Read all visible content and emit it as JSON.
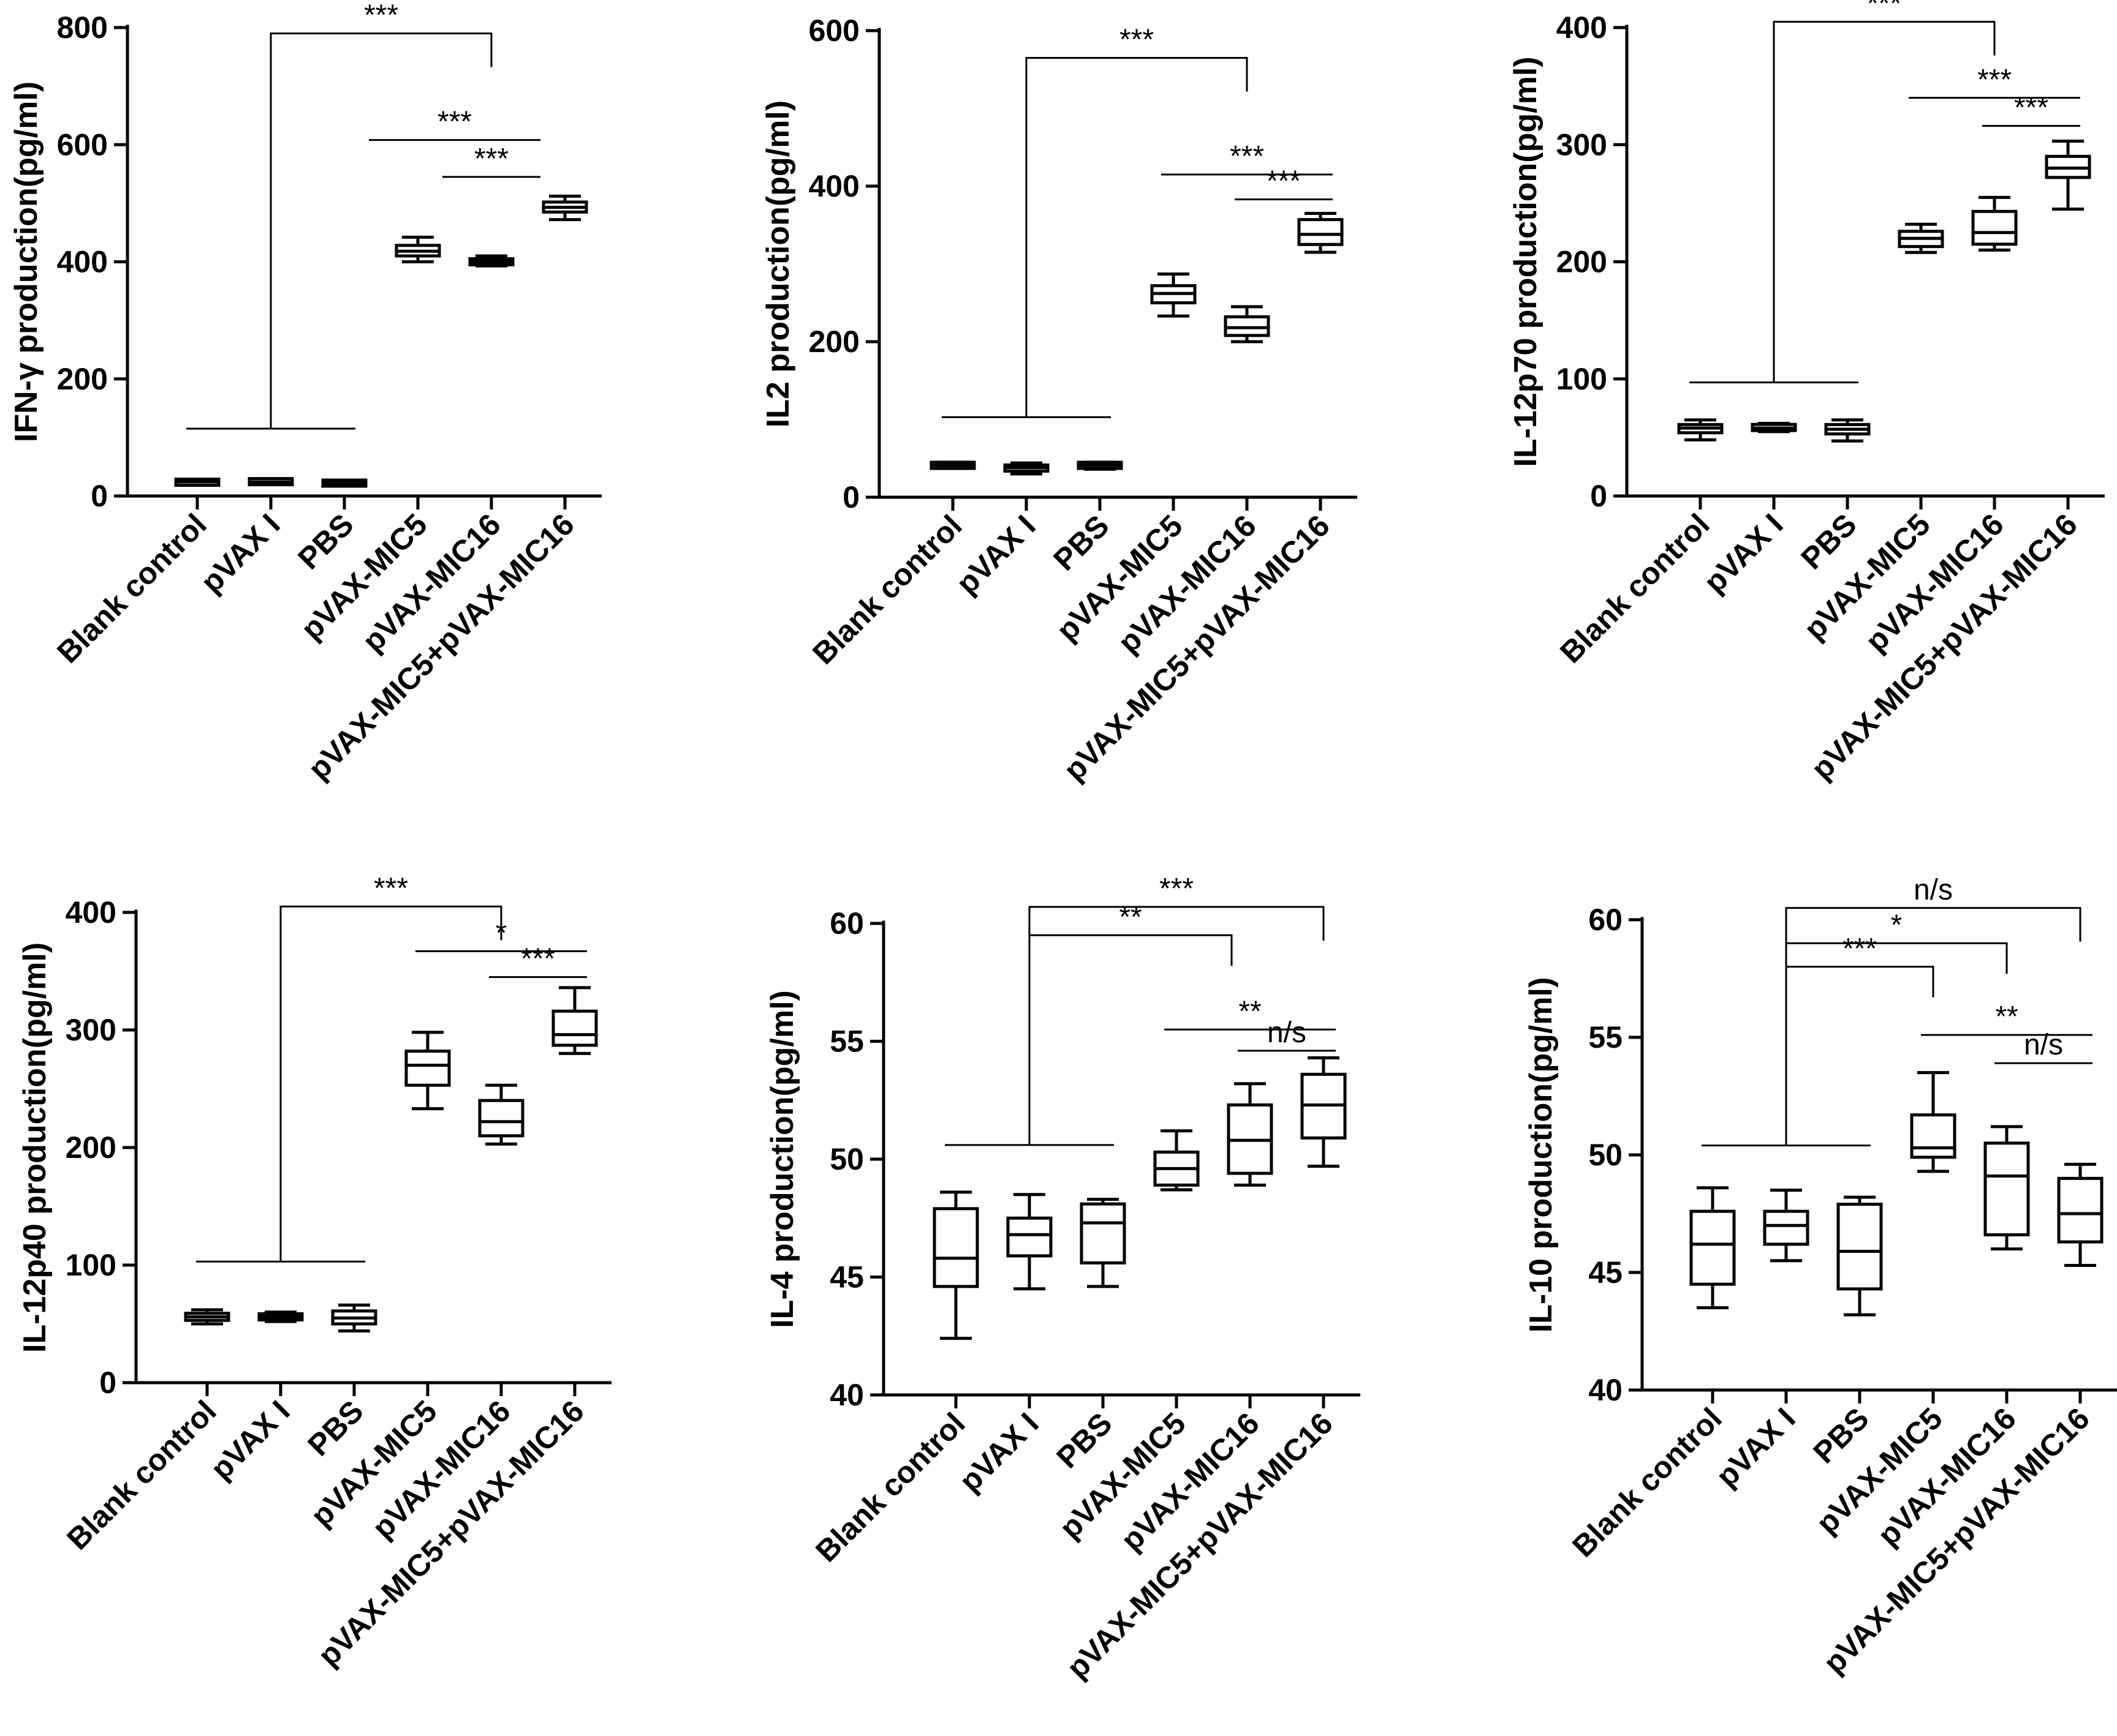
{
  "chart_data": [
    {
      "type": "box",
      "ylabel": "IFN-γ production(pg/ml)",
      "ylim": [
        0,
        800
      ],
      "yticks": [
        0,
        200,
        400,
        600,
        800
      ],
      "categories": [
        "Blank control",
        "pVAX I",
        "PBS",
        "pVAX-MIC5",
        "pVAX-MIC16",
        "pVAX-MIC5+pVAX-MIC16"
      ],
      "boxes": [
        {
          "min": 20,
          "q1": 22,
          "median": 24,
          "q3": 25,
          "max": 27
        },
        {
          "min": 21,
          "q1": 23,
          "median": 24,
          "q3": 26,
          "max": 28
        },
        {
          "min": 19,
          "q1": 21,
          "median": 22,
          "q3": 23,
          "max": 25
        },
        {
          "min": 400,
          "q1": 410,
          "median": 418,
          "q3": 428,
          "max": 442
        },
        {
          "min": 393,
          "q1": 397,
          "median": 400,
          "q3": 403,
          "max": 410
        },
        {
          "min": 472,
          "q1": 485,
          "median": 493,
          "q3": 502,
          "max": 512
        }
      ],
      "comparisons": [
        {
          "label": "***",
          "type": "group",
          "from": 0,
          "to": 2,
          "target": 4,
          "level": 115,
          "top": 790
        },
        {
          "label": "***",
          "type": "bracket",
          "from": 2.5,
          "to": 4.5,
          "level": 608
        },
        {
          "label": "***",
          "type": "bracket",
          "from": 3.5,
          "to": 4.5,
          "level": 545
        }
      ]
    },
    {
      "type": "box",
      "ylabel": "IL2 production(pg/ml)",
      "ylim": [
        0,
        600
      ],
      "yticks": [
        0,
        200,
        400,
        600
      ],
      "categories": [
        "Blank control",
        "pVAX I",
        "PBS",
        "pVAX-MIC5",
        "pVAX-MIC16",
        "pVAX-MIC5+pVAX-MIC16"
      ],
      "boxes": [
        {
          "min": 37,
          "q1": 39,
          "median": 41,
          "q3": 43,
          "max": 45
        },
        {
          "min": 30,
          "q1": 34,
          "median": 38,
          "q3": 41,
          "max": 44
        },
        {
          "min": 36,
          "q1": 39,
          "median": 41,
          "q3": 43,
          "max": 45
        },
        {
          "min": 233,
          "q1": 250,
          "median": 262,
          "q3": 272,
          "max": 287
        },
        {
          "min": 200,
          "q1": 208,
          "median": 218,
          "q3": 232,
          "max": 245
        },
        {
          "min": 315,
          "q1": 325,
          "median": 338,
          "q3": 357,
          "max": 365
        }
      ],
      "comparisons": [
        {
          "label": "***",
          "type": "group",
          "from": 0,
          "to": 2,
          "target": 4,
          "level": 103,
          "top": 565
        },
        {
          "label": "***",
          "type": "bracket",
          "from": 3,
          "to": 5,
          "level": 415
        },
        {
          "label": "***",
          "type": "bracket",
          "from": 4,
          "to": 5,
          "level": 383
        }
      ]
    },
    {
      "type": "box",
      "ylabel": "IL-12p70 production(pg/ml)",
      "ylim": [
        0,
        400
      ],
      "yticks": [
        0,
        100,
        200,
        300,
        400
      ],
      "categories": [
        "Blank control",
        "pVAX I",
        "PBS",
        "pVAX-MIC5",
        "pVAX-MIC16",
        "pVAX-MIC5+pVAX-MIC16"
      ],
      "boxes": [
        {
          "min": 48,
          "q1": 54,
          "median": 58,
          "q3": 61,
          "max": 65
        },
        {
          "min": 55,
          "q1": 57,
          "median": 58,
          "q3": 60,
          "max": 62
        },
        {
          "min": 47,
          "q1": 53,
          "median": 57,
          "q3": 61,
          "max": 65
        },
        {
          "min": 208,
          "q1": 213,
          "median": 220,
          "q3": 226,
          "max": 232
        },
        {
          "min": 210,
          "q1": 215,
          "median": 225,
          "q3": 243,
          "max": 255
        },
        {
          "min": 245,
          "q1": 272,
          "median": 280,
          "q3": 290,
          "max": 303
        }
      ],
      "comparisons": [
        {
          "label": "***",
          "type": "group",
          "from": 0,
          "to": 2,
          "target": 4,
          "level": 97,
          "top": 405
        },
        {
          "label": "***",
          "type": "bracket",
          "from": 3,
          "to": 5,
          "level": 340
        },
        {
          "label": "***",
          "type": "bracket",
          "from": 4,
          "to": 5,
          "level": 316
        }
      ]
    },
    {
      "type": "box",
      "ylabel": "IL-12p40 production(pg/ml)",
      "ylim": [
        0,
        400
      ],
      "yticks": [
        0,
        100,
        200,
        300,
        400
      ],
      "categories": [
        "Blank control",
        "pVAX I",
        "PBS",
        "pVAX-MIC5",
        "pVAX-MIC16",
        "pVAX-MIC5+pVAX-MIC16"
      ],
      "boxes": [
        {
          "min": 50,
          "q1": 53,
          "median": 56,
          "q3": 59,
          "max": 62
        },
        {
          "min": 52,
          "q1": 54,
          "median": 56,
          "q3": 58,
          "max": 60
        },
        {
          "min": 44,
          "q1": 50,
          "median": 55,
          "q3": 61,
          "max": 66
        },
        {
          "min": 233,
          "q1": 253,
          "median": 270,
          "q3": 282,
          "max": 298
        },
        {
          "min": 203,
          "q1": 210,
          "median": 222,
          "q3": 240,
          "max": 253
        },
        {
          "min": 280,
          "q1": 287,
          "median": 296,
          "q3": 316,
          "max": 336
        }
      ],
      "comparisons": [
        {
          "label": "***",
          "type": "group",
          "from": 0,
          "to": 2,
          "target": 4,
          "level": 103,
          "top": 405
        },
        {
          "label": "*",
          "type": "bracket",
          "from": 3,
          "to": 5,
          "level": 367
        },
        {
          "label": "***",
          "type": "bracket",
          "from": 4,
          "to": 5,
          "level": 345
        }
      ]
    },
    {
      "type": "box",
      "ylabel": "IL-4 production(pg/ml)",
      "ylim": [
        40,
        60
      ],
      "yticks": [
        40,
        45,
        50,
        55,
        60
      ],
      "categories": [
        "Blank control",
        "pVAX I",
        "PBS",
        "pVAX-MIC5",
        "pVAX-MIC16",
        "pVAX-MIC5+pVAX-MIC16"
      ],
      "boxes": [
        {
          "min": 42.4,
          "q1": 44.6,
          "median": 45.8,
          "q3": 47.9,
          "max": 48.6
        },
        {
          "min": 44.5,
          "q1": 45.9,
          "median": 46.8,
          "q3": 47.5,
          "max": 48.5
        },
        {
          "min": 44.6,
          "q1": 45.6,
          "median": 47.3,
          "q3": 48.1,
          "max": 48.3
        },
        {
          "min": 48.7,
          "q1": 48.9,
          "median": 49.6,
          "q3": 50.3,
          "max": 51.2
        },
        {
          "min": 48.9,
          "q1": 49.4,
          "median": 50.8,
          "q3": 52.3,
          "max": 53.2
        },
        {
          "min": 49.7,
          "q1": 50.9,
          "median": 52.3,
          "q3": 53.6,
          "max": 54.3
        }
      ],
      "comparisons": [
        {
          "label": "***",
          "type": "group",
          "from": 0,
          "to": 2,
          "target": 5,
          "level": 50.6,
          "top": 60.7
        },
        {
          "label": "**",
          "type": "bracket_down",
          "from": 1,
          "to": 3.75,
          "level": 59.5
        },
        {
          "label": "**",
          "type": "bracket",
          "from": 3,
          "to": 5,
          "level": 55.5
        },
        {
          "label": "n/s",
          "type": "bracket",
          "from": 4,
          "to": 5,
          "level": 54.6
        }
      ]
    },
    {
      "type": "box",
      "ylabel": "IL-10 production(pg/ml)",
      "ylim": [
        40,
        60
      ],
      "yticks": [
        40,
        45,
        50,
        55,
        60
      ],
      "categories": [
        "Blank control",
        "pVAX I",
        "PBS",
        "pVAX-MIC5",
        "pVAX-MIC16",
        "pVAX-MIC5+pVAX-MIC16"
      ],
      "boxes": [
        {
          "min": 43.5,
          "q1": 44.5,
          "median": 46.2,
          "q3": 47.6,
          "max": 48.6
        },
        {
          "min": 45.5,
          "q1": 46.2,
          "median": 47.0,
          "q3": 47.6,
          "max": 48.5
        },
        {
          "min": 43.2,
          "q1": 44.3,
          "median": 45.9,
          "q3": 47.9,
          "max": 48.2
        },
        {
          "min": 49.3,
          "q1": 49.9,
          "median": 50.3,
          "q3": 51.7,
          "max": 53.5
        },
        {
          "min": 46.0,
          "q1": 46.6,
          "median": 49.1,
          "q3": 50.5,
          "max": 51.2
        },
        {
          "min": 45.3,
          "q1": 46.3,
          "median": 47.5,
          "q3": 49.0,
          "max": 49.6
        }
      ],
      "comparisons": [
        {
          "label": "n/s",
          "type": "group",
          "from": 0,
          "to": 2,
          "target": 5,
          "level": 50.4,
          "top": 60.5
        },
        {
          "label": "*",
          "type": "bracket_down",
          "from": 1,
          "to": 4,
          "level": 59.0
        },
        {
          "label": "***",
          "type": "bracket_down",
          "from": 1,
          "to": 3,
          "level": 58.0
        },
        {
          "label": "**",
          "type": "bracket",
          "from": 3,
          "to": 5,
          "level": 55.1
        },
        {
          "label": "n/s",
          "type": "bracket",
          "from": 4,
          "to": 5,
          "level": 53.9
        }
      ]
    }
  ]
}
